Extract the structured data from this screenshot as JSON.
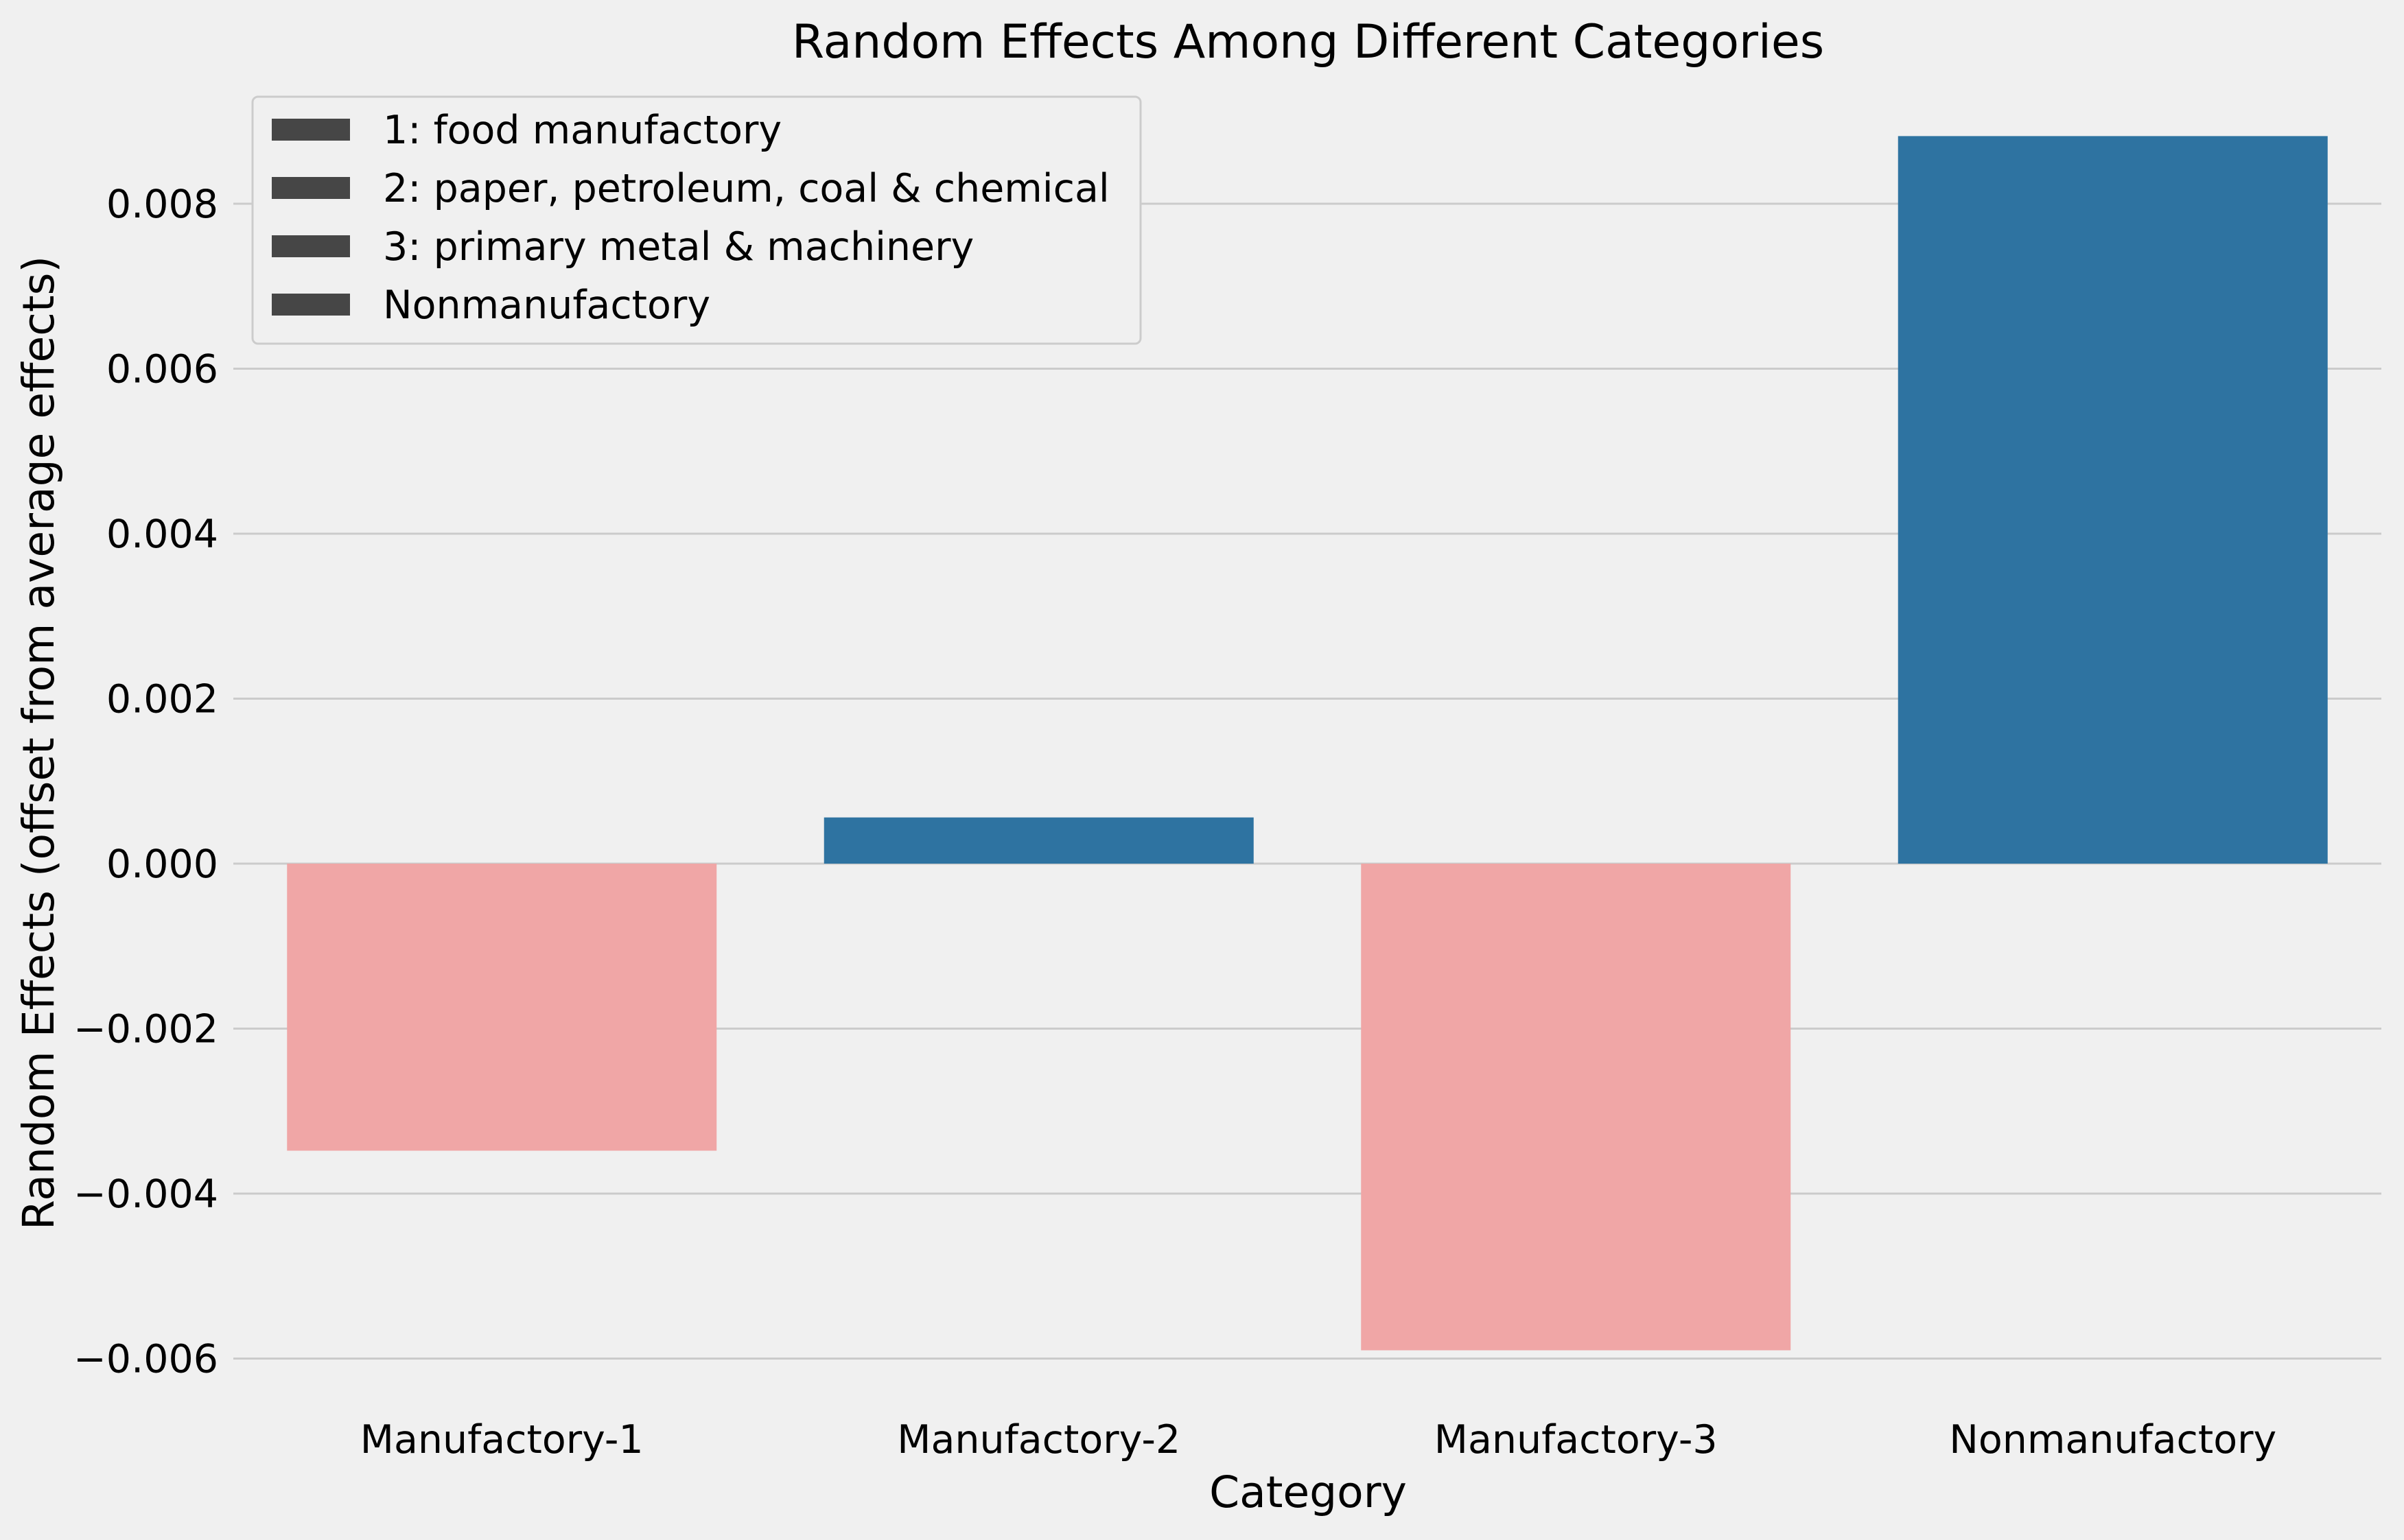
{
  "chart_data": {
    "type": "bar",
    "title": "Random Effects Among Different Categories",
    "xlabel": "Category",
    "ylabel": "Random Effects (offset from average effects)",
    "categories": [
      "Manufactory-1",
      "Manufactory-2",
      "Manufactory-3",
      "Nonmanufactory"
    ],
    "values": [
      -0.00348,
      0.00056,
      -0.0059,
      0.00882
    ],
    "bar_colors": [
      "#f0a6a6",
      "#2e73a1",
      "#f0a6a6",
      "#2e73a1"
    ],
    "ylim": [
      -0.0065,
      0.0094
    ],
    "yticks": [
      -0.006,
      -0.004,
      -0.002,
      0.0,
      0.002,
      0.004,
      0.006,
      0.008
    ],
    "ytick_labels": [
      "−0.006",
      "−0.004",
      "−0.002",
      "0.000",
      "0.002",
      "0.004",
      "0.006",
      "0.008"
    ],
    "grid": "horizontal",
    "legend": {
      "placement": "top-left",
      "swatch_color": "#464646",
      "entries": [
        "1: food manufactory",
        "2: paper, petroleum, coal & chemical",
        "3: primary metal & machinery",
        "Nonmanufactory"
      ]
    }
  }
}
